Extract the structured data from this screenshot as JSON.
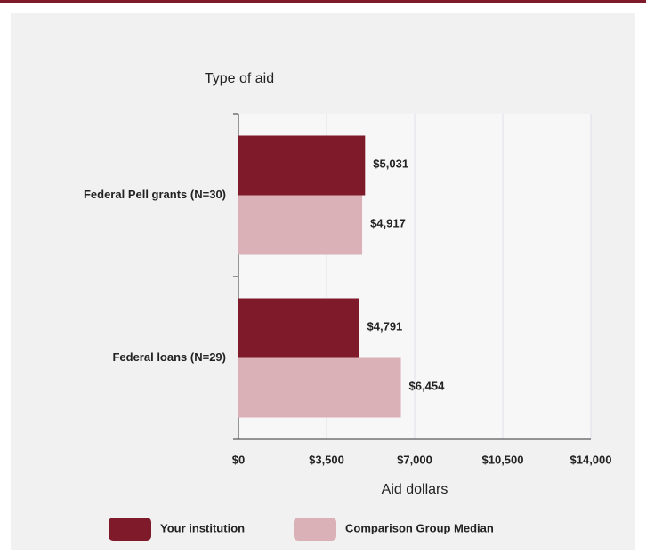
{
  "chart_data": {
    "type": "hbar",
    "title": "Type of aid",
    "xlabel": "Aid dollars",
    "categories": [
      "Federal Pell grants (N=30)",
      "Federal loans (N=29)"
    ],
    "series": [
      {
        "name": "Your institution",
        "color": "#7f1a2b",
        "values": [
          5031,
          4791
        ],
        "value_labels": [
          "$5,031",
          "$4,791"
        ]
      },
      {
        "name": "Comparison Group Median",
        "color": "#d9b1b6",
        "values": [
          4917,
          6454
        ],
        "value_labels": [
          "$4,917",
          "$6,454"
        ]
      }
    ],
    "xlim": [
      0,
      14000
    ],
    "xticks": [
      {
        "value": 0,
        "label": "$0"
      },
      {
        "value": 3500,
        "label": "$3,500"
      },
      {
        "value": 7000,
        "label": "$7,000"
      },
      {
        "value": 10500,
        "label": "$10,500"
      },
      {
        "value": 14000,
        "label": "$14,000"
      }
    ],
    "grid": true,
    "legend": "bottom"
  }
}
